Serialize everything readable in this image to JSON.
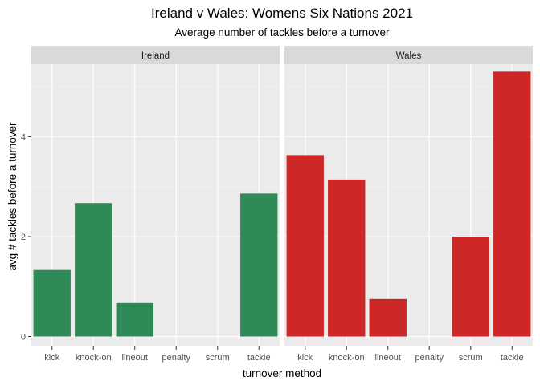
{
  "chart_data": {
    "type": "bar",
    "title": "Ireland v Wales: Womens Six Nations 2021",
    "subtitle": "Average number of tackles before a turnover",
    "xlabel": "turnover method",
    "ylabel": "avg # tackles before a turnover",
    "categories": [
      "kick",
      "knock-on",
      "lineout",
      "penalty",
      "scrum",
      "tackle"
    ],
    "ylim": [
      -0.2,
      5.45
    ],
    "y_ticks": [
      0,
      2,
      4
    ],
    "grid": true,
    "facets": [
      {
        "name": "Ireland",
        "color": "#2e8b57",
        "values": [
          1.33,
          2.67,
          0.67,
          0,
          0,
          2.86
        ]
      },
      {
        "name": "Wales",
        "color": "#cd2626",
        "values": [
          3.63,
          3.14,
          0.75,
          0,
          2.0,
          5.3
        ]
      }
    ]
  }
}
